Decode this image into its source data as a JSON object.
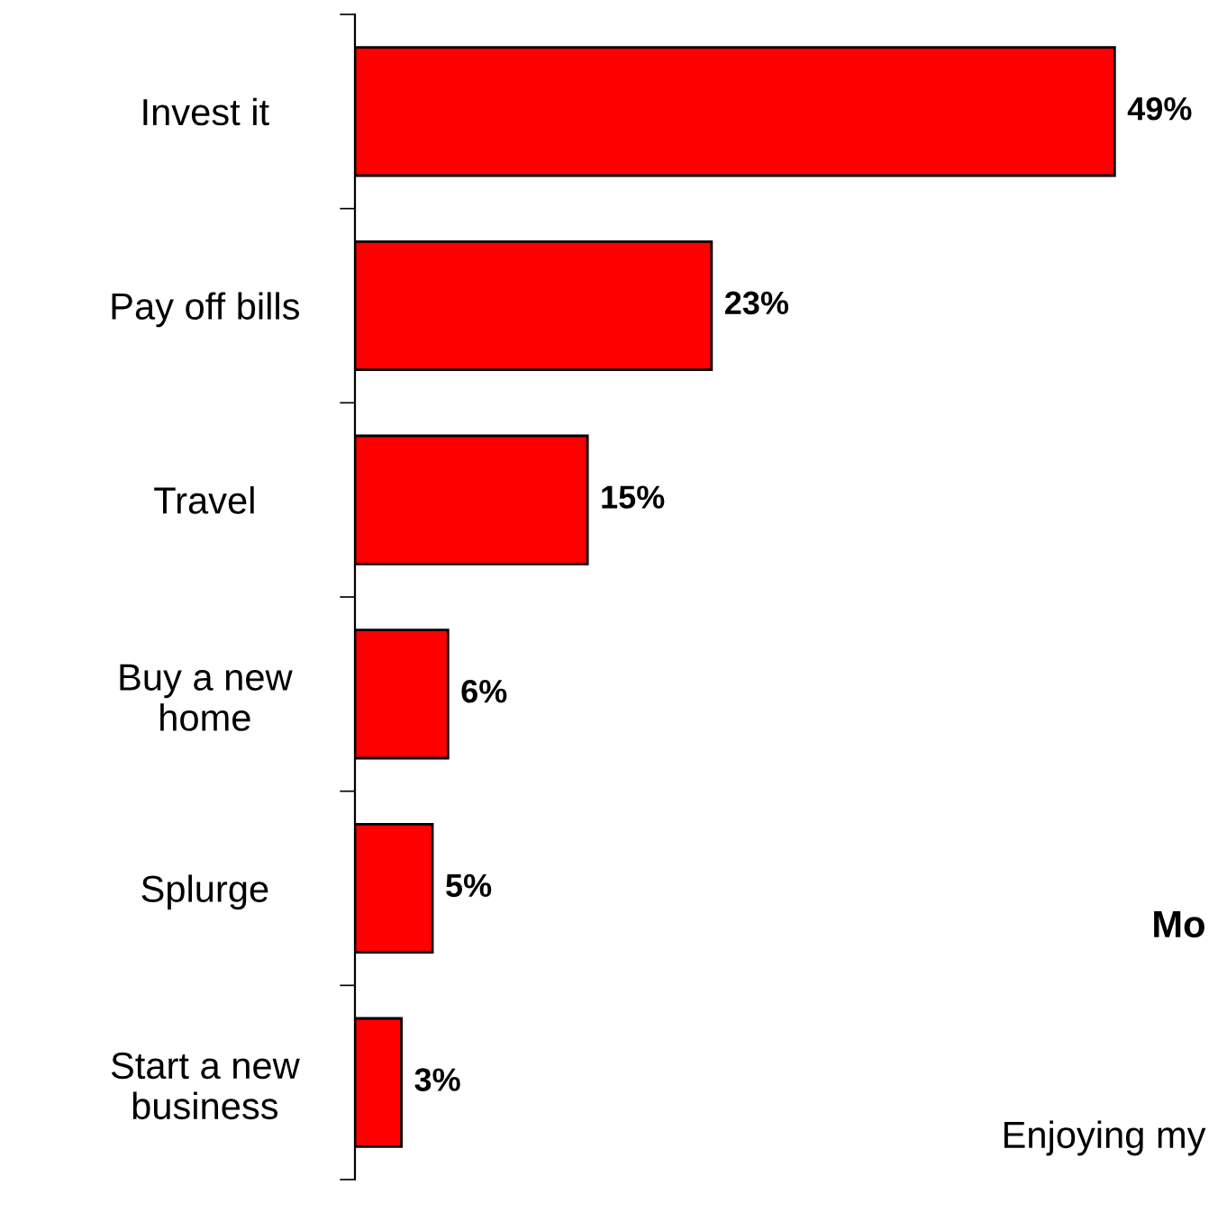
{
  "chart_data": {
    "type": "bar",
    "orientation": "horizontal",
    "categories": [
      "Invest it",
      "Pay off bills",
      "Travel",
      "Buy a new\nhome",
      "Splurge",
      "Start a new\nbusiness"
    ],
    "values": [
      49,
      23,
      15,
      6,
      5,
      3
    ],
    "value_labels": [
      "49%",
      "23%",
      "15%",
      "6%",
      "5%",
      "3%"
    ],
    "color": "#ff0000",
    "annotations": [
      "Mo",
      "Enjoying my"
    ],
    "grid": false,
    "legend": false
  }
}
